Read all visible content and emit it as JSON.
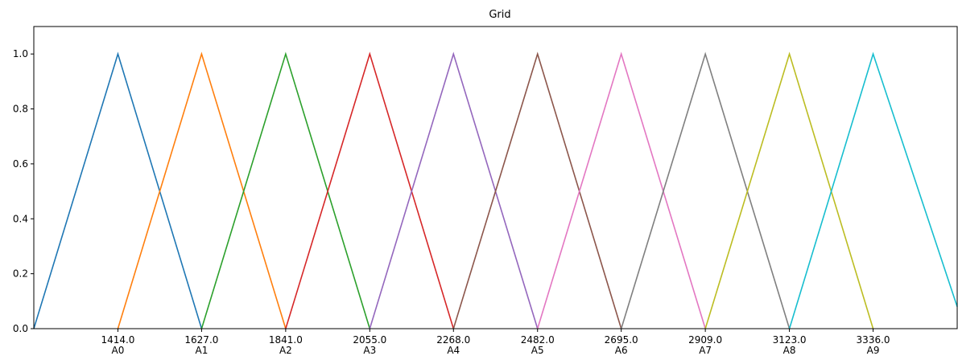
{
  "chart_data": {
    "type": "line",
    "title": "Grid",
    "xlabel": "",
    "ylabel": "",
    "xlim": [
      1200,
      3550
    ],
    "ylim": [
      0,
      1.1
    ],
    "grid": false,
    "x_ticks": [
      {
        "value": 1414,
        "label": "1414.0",
        "sublabel": "A0"
      },
      {
        "value": 1627,
        "label": "1627.0",
        "sublabel": "A1"
      },
      {
        "value": 1841,
        "label": "1841.0",
        "sublabel": "A2"
      },
      {
        "value": 2055,
        "label": "2055.0",
        "sublabel": "A3"
      },
      {
        "value": 2268,
        "label": "2268.0",
        "sublabel": "A4"
      },
      {
        "value": 2482,
        "label": "2482.0",
        "sublabel": "A5"
      },
      {
        "value": 2695,
        "label": "2695.0",
        "sublabel": "A6"
      },
      {
        "value": 2909,
        "label": "2909.0",
        "sublabel": "A7"
      },
      {
        "value": 3123,
        "label": "3123.0",
        "sublabel": "A8"
      },
      {
        "value": 3336,
        "label": "3336.0",
        "sublabel": "A9"
      }
    ],
    "y_ticks": [
      {
        "value": 0.0,
        "label": "0.0"
      },
      {
        "value": 0.2,
        "label": "0.2"
      },
      {
        "value": 0.4,
        "label": "0.4"
      },
      {
        "value": 0.6,
        "label": "0.6"
      },
      {
        "value": 0.8,
        "label": "0.8"
      },
      {
        "value": 1.0,
        "label": "1.0"
      }
    ],
    "series": [
      {
        "color": "#1f77b4",
        "x": [
          1200,
          1414,
          1627
        ],
        "y": [
          0,
          1,
          0
        ]
      },
      {
        "color": "#ff7f0e",
        "x": [
          1414,
          1627,
          1841
        ],
        "y": [
          0,
          1,
          0
        ]
      },
      {
        "color": "#2ca02c",
        "x": [
          1627,
          1841,
          2055
        ],
        "y": [
          0,
          1,
          0
        ]
      },
      {
        "color": "#d62728",
        "x": [
          1841,
          2055,
          2268
        ],
        "y": [
          0,
          1,
          0
        ]
      },
      {
        "color": "#9467bd",
        "x": [
          2055,
          2268,
          2482
        ],
        "y": [
          0,
          1,
          0
        ]
      },
      {
        "color": "#8c564b",
        "x": [
          2268,
          2482,
          2695
        ],
        "y": [
          0,
          1,
          0
        ]
      },
      {
        "color": "#e377c2",
        "x": [
          2482,
          2695,
          2909
        ],
        "y": [
          0,
          1,
          0
        ]
      },
      {
        "color": "#7f7f7f",
        "x": [
          2695,
          2909,
          3123
        ],
        "y": [
          0,
          1,
          0
        ]
      },
      {
        "color": "#bcbd22",
        "x": [
          2909,
          3123,
          3336
        ],
        "y": [
          0,
          1,
          0
        ]
      },
      {
        "color": "#17becf",
        "x": [
          3123,
          3336,
          3550
        ],
        "y": [
          0,
          1,
          0.08
        ]
      }
    ]
  }
}
